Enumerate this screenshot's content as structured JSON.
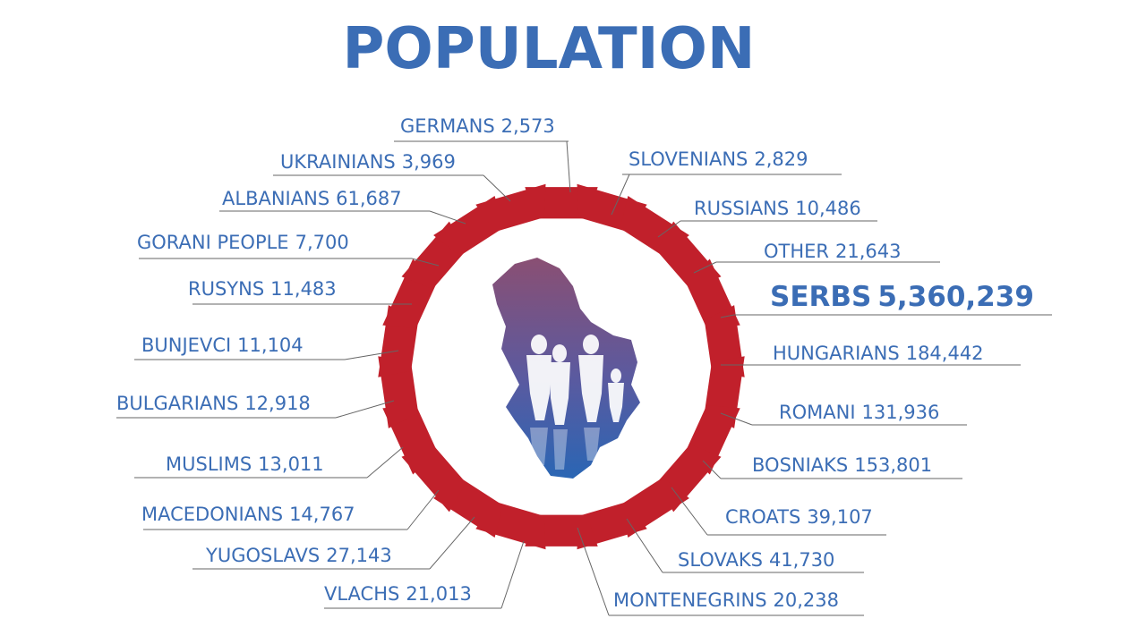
{
  "title": "POPULATION",
  "groups": [
    {
      "name": "GERMANS",
      "value": "2,573"
    },
    {
      "name": "SLOVENIANS",
      "value": "2,829"
    },
    {
      "name": "RUSSIANS",
      "value": "10,486"
    },
    {
      "name": "OTHER",
      "value": "21,643"
    },
    {
      "name": "SERBS",
      "value": "5,360,239"
    },
    {
      "name": "HUNGARIANS",
      "value": "184,442"
    },
    {
      "name": "ROMANI",
      "value": "131,936"
    },
    {
      "name": "BOSNIAKS",
      "value": "153,801"
    },
    {
      "name": "CROATS",
      "value": "39,107"
    },
    {
      "name": "SLOVAKS",
      "value": "41,730"
    },
    {
      "name": "MONTENEGRINS",
      "value": "20,238"
    },
    {
      "name": "VLACHS",
      "value": "21,013"
    },
    {
      "name": "YUGOSLAVS",
      "value": "27,143"
    },
    {
      "name": "MACEDONIANS",
      "value": "14,767"
    },
    {
      "name": "MUSLIMS",
      "value": "13,011"
    },
    {
      "name": "BULGARIANS",
      "value": "12,918"
    },
    {
      "name": "BUNJEVCI",
      "value": "11,104"
    },
    {
      "name": "RUSYNS",
      "value": "11,483"
    },
    {
      "name": "GORANI PEOPLE",
      "value": "7,700"
    },
    {
      "name": "ALBANIANS",
      "value": "61,687"
    },
    {
      "name": "UKRAINIANS",
      "value": "3,969"
    }
  ]
}
